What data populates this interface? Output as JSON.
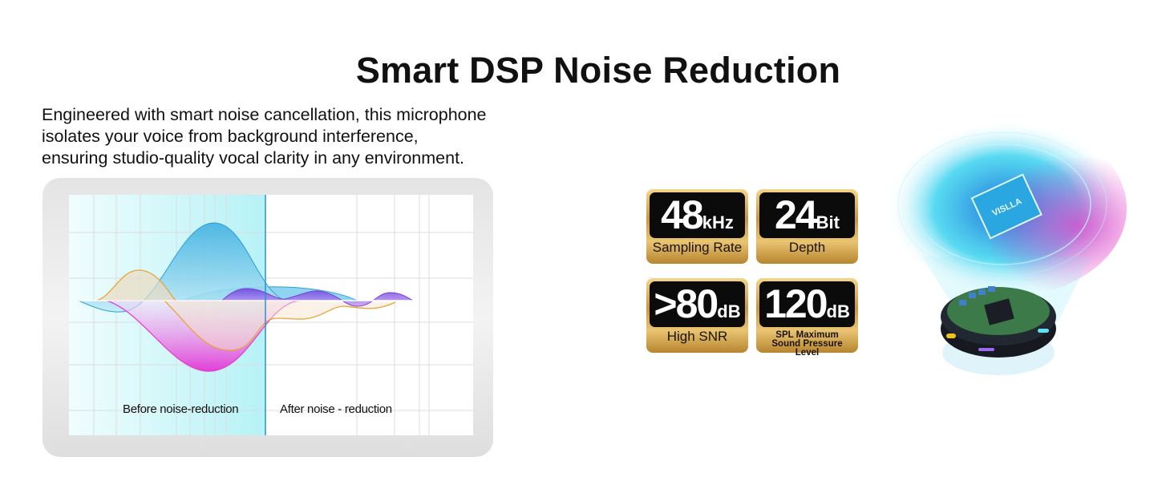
{
  "title": "Smart DSP Noise Reduction",
  "description": [
    "Engineered with smart noise cancellation, this microphone",
    "isolates your voice from background interference,",
    "ensuring studio-quality vocal clarity in any environment."
  ],
  "comparison": {
    "before_label": "Before noise-reduction",
    "after_label": "After noise - reduction"
  },
  "badges": [
    {
      "value": "48",
      "unit": "kHz",
      "caption": "Sampling Rate"
    },
    {
      "value": "24",
      "unit": "Bit",
      "caption": "Depth"
    },
    {
      "value": ">80",
      "unit": "dB",
      "caption": "High SNR"
    },
    {
      "value": "120",
      "unit": "dB",
      "caption": "SPL Maximum Sound Pressure Level"
    }
  ],
  "chip": {
    "logo": "VISLLA"
  },
  "colors": {
    "accent_cyan": "#2bb8e8",
    "magenta": "#e23fd8",
    "orange": "#e8a53a",
    "purple": "#8a4fe0",
    "gold": "#d4a24c"
  }
}
